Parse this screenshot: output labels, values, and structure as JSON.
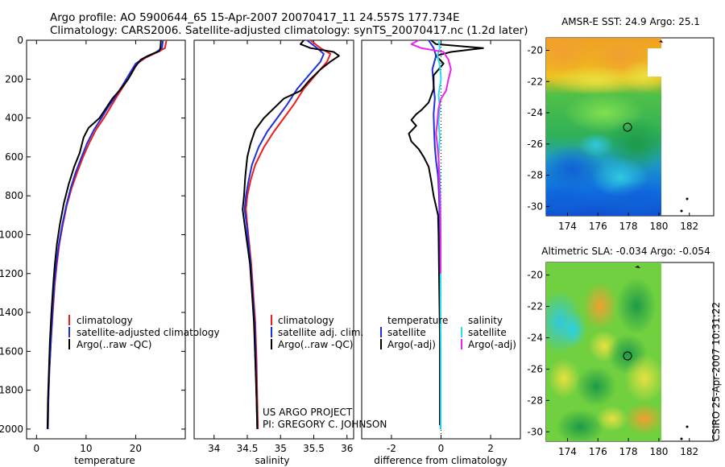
{
  "header": {
    "title_line1": "Argo profile: AO 5900644_65 15-Apr-2007 20070417_11 24.557S 177.734E",
    "title_line2": "Climatology: CARS2006. Satellite-adjusted climatology: synTS_20070417.nc (1.2d later)"
  },
  "credit": {
    "line1": "US ARGO PROJECT",
    "line2": "PI: GREGORY C. JOHNSON"
  },
  "timestamp": "CSIRO 25-Apr-2007 10:31:22",
  "colors": {
    "climatology": "#ee1c1c",
    "satellite": "#1f2fe0",
    "argo": "#000000",
    "satellite_diff": "#22e0f0",
    "argo_adj": "#ee22ee"
  },
  "chart_data": [
    {
      "type": "line",
      "name": "temperature-profile",
      "xlabel": "temperature",
      "ylabel": "",
      "xlim": [
        -2,
        30
      ],
      "ylim": [
        2050,
        0
      ],
      "x_ticks": [
        0,
        10,
        20
      ],
      "y_ticks": [
        0,
        200,
        400,
        600,
        800,
        1000,
        1200,
        1400,
        1600,
        1800,
        2000
      ],
      "legend": [
        "climatology",
        "satellite-adjusted climatology",
        "Argo(..raw -QC)"
      ],
      "series": [
        {
          "name": "climatology",
          "color": "#ee1c1c",
          "points": [
            [
              26.2,
              0
            ],
            [
              25.9,
              40
            ],
            [
              24.5,
              60
            ],
            [
              22,
              90
            ],
            [
              20.3,
              120
            ],
            [
              19.2,
              170
            ],
            [
              17.7,
              230
            ],
            [
              16.2,
              290
            ],
            [
              14.8,
              350
            ],
            [
              13.6,
              400
            ],
            [
              12,
              460
            ],
            [
              10.6,
              530
            ],
            [
              9.4,
              600
            ],
            [
              8.2,
              680
            ],
            [
              7.1,
              760
            ],
            [
              6.1,
              850
            ],
            [
              5.3,
              950
            ],
            [
              4.6,
              1050
            ],
            [
              4.1,
              1150
            ],
            [
              3.7,
              1250
            ],
            [
              3.3,
              1400
            ],
            [
              2.9,
              1550
            ],
            [
              2.6,
              1700
            ],
            [
              2.4,
              1850
            ],
            [
              2.3,
              2000
            ]
          ]
        },
        {
          "name": "satellite-adjusted climatology",
          "color": "#1f2fe0",
          "points": [
            [
              25.5,
              0
            ],
            [
              25.3,
              40
            ],
            [
              24.2,
              60
            ],
            [
              21.8,
              90
            ],
            [
              20,
              120
            ],
            [
              18.8,
              170
            ],
            [
              17.4,
              230
            ],
            [
              15.9,
              290
            ],
            [
              14.3,
              350
            ],
            [
              13.1,
              400
            ],
            [
              11.6,
              460
            ],
            [
              10.2,
              530
            ],
            [
              9.1,
              600
            ],
            [
              7.9,
              680
            ],
            [
              6.9,
              760
            ],
            [
              6,
              850
            ],
            [
              5.2,
              950
            ],
            [
              4.5,
              1050
            ],
            [
              4,
              1150
            ],
            [
              3.6,
              1250
            ],
            [
              3.2,
              1400
            ],
            [
              2.9,
              1550
            ],
            [
              2.6,
              1700
            ],
            [
              2.4,
              1850
            ],
            [
              2.3,
              2000
            ]
          ]
        },
        {
          "name": "Argo(..raw -QC)",
          "color": "#000000",
          "points": [
            [
              25.1,
              0
            ],
            [
              25,
              35
            ],
            [
              24.8,
              55
            ],
            [
              22.5,
              80
            ],
            [
              21,
              100
            ],
            [
              19.8,
              140
            ],
            [
              18.5,
              200
            ],
            [
              17,
              250
            ],
            [
              15.3,
              300
            ],
            [
              14,
              350
            ],
            [
              12.7,
              400
            ],
            [
              10.5,
              450
            ],
            [
              9.5,
              500
            ],
            [
              8.7,
              580
            ],
            [
              7.6,
              650
            ],
            [
              6.5,
              740
            ],
            [
              5.5,
              840
            ],
            [
              4.7,
              950
            ],
            [
              4.1,
              1050
            ],
            [
              3.7,
              1150
            ],
            [
              3.4,
              1250
            ],
            [
              3,
              1400
            ],
            [
              2.7,
              1550
            ],
            [
              2.5,
              1700
            ],
            [
              2.3,
              1850
            ],
            [
              2.2,
              2000
            ]
          ]
        }
      ]
    },
    {
      "type": "line",
      "name": "salinity-profile",
      "xlabel": "salinity",
      "ylabel": "",
      "xlim": [
        33.7,
        36.1
      ],
      "ylim": [
        2050,
        0
      ],
      "x_ticks": [
        34,
        34.5,
        35,
        35.5,
        36
      ],
      "y_ticks": [],
      "legend": [
        "climatology",
        "satellite adj. clim.",
        "Argo(..raw -QC)"
      ],
      "series": [
        {
          "name": "climatology",
          "color": "#ee1c1c",
          "points": [
            [
              35.45,
              0
            ],
            [
              35.6,
              40
            ],
            [
              35.75,
              70
            ],
            [
              35.7,
              110
            ],
            [
              35.55,
              170
            ],
            [
              35.35,
              250
            ],
            [
              35.2,
              330
            ],
            [
              35.05,
              400
            ],
            [
              34.9,
              470
            ],
            [
              34.75,
              550
            ],
            [
              34.62,
              640
            ],
            [
              34.55,
              720
            ],
            [
              34.5,
              800
            ],
            [
              34.48,
              870
            ],
            [
              34.5,
              950
            ],
            [
              34.53,
              1050
            ],
            [
              34.56,
              1150
            ],
            [
              34.59,
              1300
            ],
            [
              34.62,
              1450
            ],
            [
              34.64,
              1650
            ],
            [
              34.65,
              1850
            ],
            [
              34.66,
              2000
            ]
          ]
        },
        {
          "name": "satellite adj. clim.",
          "color": "#1f2fe0",
          "points": [
            [
              35.4,
              0
            ],
            [
              35.55,
              40
            ],
            [
              35.65,
              70
            ],
            [
              35.6,
              110
            ],
            [
              35.45,
              170
            ],
            [
              35.25,
              250
            ],
            [
              35.1,
              330
            ],
            [
              34.95,
              400
            ],
            [
              34.8,
              470
            ],
            [
              34.67,
              550
            ],
            [
              34.57,
              640
            ],
            [
              34.52,
              720
            ],
            [
              34.48,
              800
            ],
            [
              34.46,
              870
            ],
            [
              34.49,
              950
            ],
            [
              34.52,
              1050
            ],
            [
              34.55,
              1150
            ],
            [
              34.58,
              1300
            ],
            [
              34.61,
              1450
            ],
            [
              34.63,
              1650
            ],
            [
              34.64,
              1850
            ],
            [
              34.65,
              2000
            ]
          ]
        },
        {
          "name": "Argo(..raw -QC)",
          "color": "#000000",
          "points": [
            [
              35.35,
              0
            ],
            [
              35.3,
              20
            ],
            [
              35.45,
              40
            ],
            [
              35.8,
              60
            ],
            [
              35.88,
              80
            ],
            [
              35.75,
              110
            ],
            [
              35.6,
              150
            ],
            [
              35.45,
              200
            ],
            [
              35.3,
              260
            ],
            [
              35.05,
              300
            ],
            [
              34.9,
              350
            ],
            [
              34.75,
              400
            ],
            [
              34.62,
              460
            ],
            [
              34.55,
              530
            ],
            [
              34.5,
              600
            ],
            [
              34.47,
              700
            ],
            [
              34.45,
              800
            ],
            [
              34.43,
              870
            ],
            [
              34.46,
              950
            ],
            [
              34.5,
              1050
            ],
            [
              34.54,
              1150
            ],
            [
              34.57,
              1300
            ],
            [
              34.6,
              1450
            ],
            [
              34.62,
              1650
            ],
            [
              34.64,
              1850
            ],
            [
              34.65,
              2000
            ]
          ]
        }
      ]
    },
    {
      "type": "line",
      "name": "difference-profile",
      "xlabel": "difference from climatology",
      "ylabel": "",
      "xlim": [
        -3.2,
        3.2
      ],
      "ylim": [
        2050,
        0
      ],
      "x_ticks": [
        -2,
        0,
        2
      ],
      "y_ticks": [],
      "legend_headers": [
        "temperature",
        "salinity"
      ],
      "legend": [
        "satellite",
        "Argo(-adj)",
        "satellite",
        "Argo(-adj)"
      ],
      "series": [
        {
          "name": "temperature satellite",
          "color": "#1f2fe0",
          "points": [
            [
              -0.5,
              0
            ],
            [
              -0.3,
              40
            ],
            [
              -0.2,
              80
            ],
            [
              -0.35,
              150
            ],
            [
              -0.3,
              230
            ],
            [
              -0.25,
              300
            ],
            [
              -0.3,
              380
            ],
            [
              -0.28,
              460
            ],
            [
              -0.25,
              550
            ],
            [
              -0.2,
              620
            ],
            [
              -0.12,
              700
            ],
            [
              -0.08,
              800
            ],
            [
              -0.05,
              950
            ],
            [
              -0.04,
              1200
            ],
            [
              -0.03,
              1500
            ],
            [
              -0.03,
              1800
            ],
            [
              -0.02,
              2000
            ]
          ]
        },
        {
          "name": "temperature Argo(-adj)",
          "color": "#000000",
          "points": [
            [
              -0.4,
              0
            ],
            [
              -0.2,
              20
            ],
            [
              1.7,
              40
            ],
            [
              0.4,
              60
            ],
            [
              -0.2,
              80
            ],
            [
              0.1,
              120
            ],
            [
              -0.3,
              180
            ],
            [
              -0.3,
              250
            ],
            [
              -0.5,
              320
            ],
            [
              -0.8,
              360
            ],
            [
              -1.0,
              380
            ],
            [
              -1.2,
              410
            ],
            [
              -1.0,
              440
            ],
            [
              -1.3,
              480
            ],
            [
              -1.2,
              520
            ],
            [
              -0.9,
              560
            ],
            [
              -0.7,
              600
            ],
            [
              -0.5,
              650
            ],
            [
              -0.4,
              720
            ],
            [
              -0.3,
              800
            ],
            [
              -0.12,
              900
            ],
            [
              -0.1,
              1000
            ],
            [
              -0.08,
              1200
            ],
            [
              -0.05,
              1500
            ],
            [
              -0.05,
              1800
            ],
            [
              -0.05,
              1980
            ]
          ]
        },
        {
          "name": "salinity satellite",
          "color": "#22e0f0",
          "points": [
            [
              -0.1,
              0
            ],
            [
              -0.05,
              40
            ],
            [
              -0.15,
              80
            ],
            [
              -0.05,
              130
            ],
            [
              0.0,
              200
            ],
            [
              -0.1,
              280
            ],
            [
              -0.05,
              350
            ],
            [
              -0.1,
              420
            ],
            [
              -0.05,
              500
            ],
            [
              -0.1,
              600
            ],
            [
              -0.05,
              700
            ],
            [
              -0.03,
              800
            ],
            [
              -0.02,
              1000
            ],
            [
              -0.02,
              1300
            ],
            [
              -0.01,
              1600
            ],
            [
              -0.01,
              2000
            ]
          ]
        },
        {
          "name": "salinity Argo(-adj)",
          "color": "#ee22ee",
          "points": [
            [
              -0.9,
              0
            ],
            [
              -1.2,
              20
            ],
            [
              -0.8,
              40
            ],
            [
              0.1,
              60
            ],
            [
              0.3,
              100
            ],
            [
              0.4,
              150
            ],
            [
              0.3,
              200
            ],
            [
              0.2,
              260
            ],
            [
              0.0,
              300
            ],
            [
              -0.1,
              350
            ],
            [
              -0.15,
              420
            ],
            [
              -0.2,
              480
            ],
            [
              -0.15,
              540
            ],
            [
              -0.1,
              600
            ],
            [
              -0.08,
              700
            ],
            [
              -0.05,
              800
            ],
            [
              -0.03,
              900
            ],
            [
              -0.02,
              1000
            ],
            [
              -0.02,
              1200
            ]
          ]
        }
      ]
    }
  ],
  "maps": [
    {
      "name": "sst-map",
      "title": "AMSR-E SST: 24.9 Argo: 25.1",
      "x_ticks": [
        "174",
        "176",
        "178",
        "180",
        "182"
      ],
      "y_ticks": [
        "-20",
        "-22",
        "-24",
        "-26",
        "-28",
        "-30"
      ]
    },
    {
      "name": "sla-map",
      "title": "Altimetric SLA: -0.034 Argo: -0.054",
      "x_ticks": [
        "174",
        "176",
        "178",
        "180",
        "182"
      ],
      "y_ticks": [
        "-20",
        "-22",
        "-24",
        "-26",
        "-28",
        "-30"
      ]
    }
  ]
}
